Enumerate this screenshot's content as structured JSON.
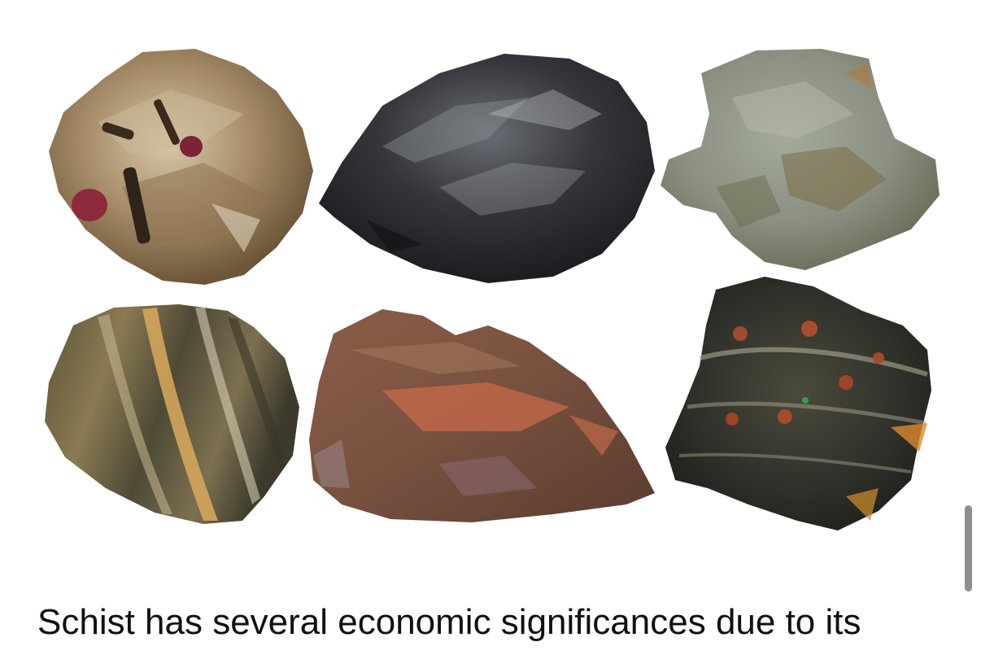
{
  "article": {
    "image": {
      "subject": "schist-rock-samples",
      "specimens": [
        {
          "name": "garnet-mica-schist",
          "color": "#a48a66"
        },
        {
          "name": "graphite-schist",
          "color": "#2c2e32"
        },
        {
          "name": "chlorite-schist",
          "color": "#8a8f80"
        },
        {
          "name": "banded-mica-schist",
          "color": "#6e6347"
        },
        {
          "name": "red-brown-schist",
          "color": "#7a5240"
        },
        {
          "name": "dark-garnet-schist",
          "color": "#2f302a"
        }
      ]
    },
    "caption_text": "Schist has several economic significances due to its"
  },
  "scrollbar": {
    "color": "#8e8e93"
  }
}
